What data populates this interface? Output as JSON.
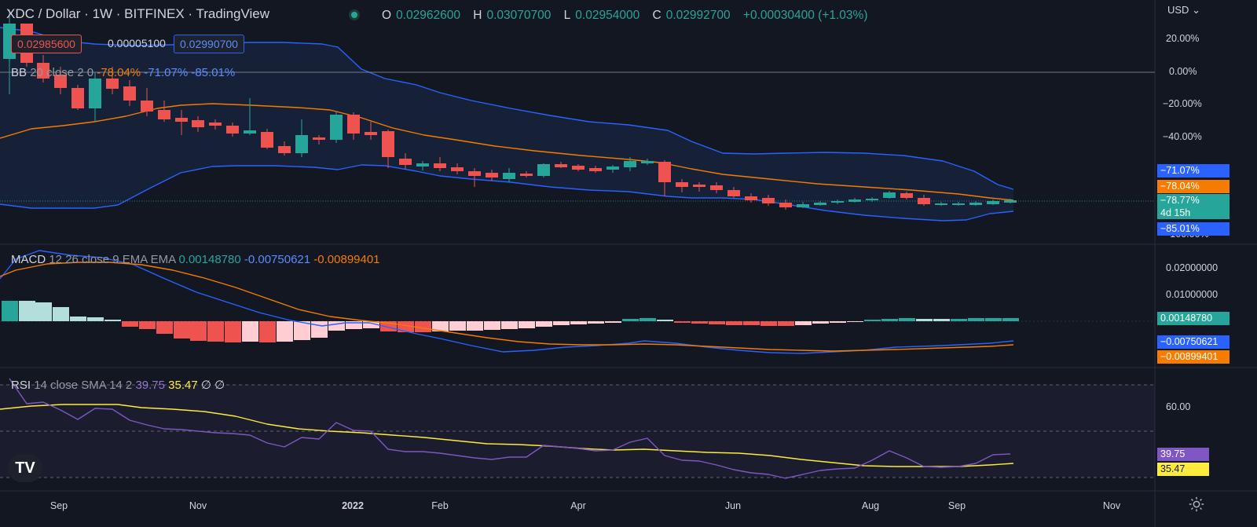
{
  "header": {
    "title": "XDC / Dollar · 1W · BITFINEX · TradingView",
    "live_dot_color": "#26a69a",
    "ohlc": [
      {
        "k": "O",
        "v": "0.02962600"
      },
      {
        "k": "H",
        "v": "0.03070700"
      },
      {
        "k": "L",
        "v": "0.02954000"
      },
      {
        "k": "C",
        "v": "0.02992700"
      }
    ],
    "change": "+0.00030400 (+1.03%)"
  },
  "order_boxes": {
    "sell": "0.02985600",
    "spread": "0.00005100",
    "buy": "0.02990700"
  },
  "currency": "USD",
  "bb_legend": {
    "name": "BB",
    "params": "20 close 2 0",
    "basis": "-78.04%",
    "upper": "-71.07%",
    "lower": "-85.01%"
  },
  "macd_legend": {
    "name": "MACD",
    "params": "12 26 close 9 EMA EMA",
    "hist": "0.00148780",
    "macd": "-0.00750621",
    "signal": "-0.00899401"
  },
  "rsi_legend": {
    "name": "RSI",
    "params": "14 close SMA 14 2",
    "rsi": "39.75",
    "sma": "35.47",
    "n1": "∅",
    "n2": "∅"
  },
  "price_axis": [
    "20.00%",
    "0.00%",
    "−20.00%",
    "−40.00%",
    "−100.00%"
  ],
  "price_tags": {
    "upper": "−71.07%",
    "basis": "−78.04%",
    "last": "−78.77%",
    "countdown": "4d 15h",
    "lower": "−85.01%"
  },
  "macd_axis": [
    "0.02000000",
    "0.01000000"
  ],
  "macd_tags": {
    "hist": "0.00148780",
    "macd": "−0.00750621",
    "signal": "−0.00899401"
  },
  "rsi_axis": [
    "60.00"
  ],
  "rsi_tags": {
    "rsi": "39.75",
    "sma": "35.47"
  },
  "time_axis": [
    {
      "label": "Sep",
      "bold": false
    },
    {
      "label": "Nov",
      "bold": false
    },
    {
      "label": "2022",
      "bold": true
    },
    {
      "label": "Feb",
      "bold": false
    },
    {
      "label": "Apr",
      "bold": false
    },
    {
      "label": "Jun",
      "bold": false
    },
    {
      "label": "Aug",
      "bold": false
    },
    {
      "label": "Sep",
      "bold": false
    },
    {
      "label": "Nov",
      "bold": false
    }
  ],
  "colors": {
    "up": "#26a69a",
    "down": "#ef5350",
    "bb_band": "#2962ff",
    "bb_basis": "#f57c00",
    "macd_line": "#2962ff",
    "signal_line": "#f57c00",
    "rsi": "#7e57c2",
    "rsi_sma": "#ffeb3b"
  },
  "logo_text": "TV"
}
